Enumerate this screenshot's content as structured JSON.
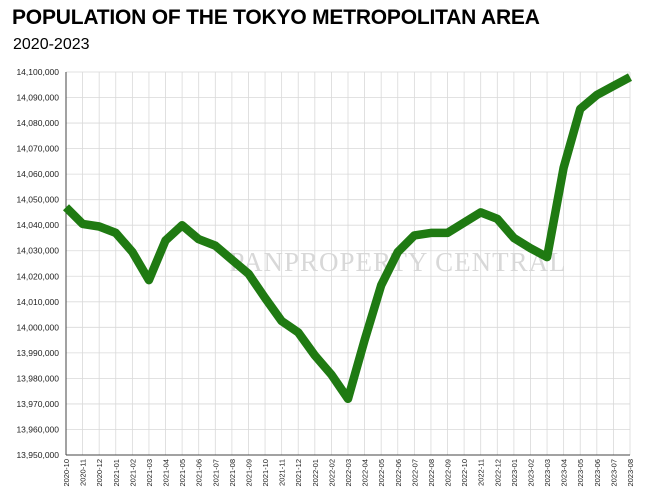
{
  "chart_data": {
    "type": "line",
    "title": "POPULATION OF THE TOKYO METROPOLITAN AREA",
    "subtitle": "2020-2023",
    "watermark": "PANPROPERTY CENTRAL",
    "xlabel": "",
    "ylabel": "",
    "ylim": [
      13950000,
      14100000
    ],
    "yticks": [
      13950000,
      13960000,
      13970000,
      13980000,
      13990000,
      14000000,
      14010000,
      14020000,
      14030000,
      14040000,
      14050000,
      14060000,
      14070000,
      14080000,
      14090000,
      14100000
    ],
    "ytick_labels": [
      "13,950,000",
      "13,960,000",
      "13,970,000",
      "13,980,000",
      "13,990,000",
      "14,000,000",
      "14,010,000",
      "14,020,000",
      "14,030,000",
      "14,040,000",
      "14,050,000",
      "14,060,000",
      "14,070,000",
      "14,080,000",
      "14,090,000",
      "14,100,000"
    ],
    "grid": true,
    "line_color": "#1f7a12",
    "categories": [
      "2020-10",
      "2020-11",
      "2020-12",
      "2021-01",
      "2021-02",
      "2021-03",
      "2021-04",
      "2021-05",
      "2021-06",
      "2021-07",
      "2021-08",
      "2021-09",
      "2021-10",
      "2021-11",
      "2021-12",
      "2022-01",
      "2022-02",
      "2022-03",
      "2022-04",
      "2022-05",
      "2022-06",
      "2022-07",
      "2022-08",
      "2022-09",
      "2022-10",
      "2022-11",
      "2022-12",
      "2023-01",
      "2023-02",
      "2023-03",
      "2023-04",
      "2023-05",
      "2023-06",
      "2023-07",
      "2023-08"
    ],
    "series": [
      {
        "values": [
          14047000,
          14040500,
          14039500,
          14037000,
          14029500,
          14018500,
          14034000,
          14040000,
          14034500,
          14032000,
          14026500,
          14021000,
          14011500,
          14002500,
          13998000,
          13989000,
          13981500,
          13972000,
          13995000,
          14016500,
          14029500,
          14036000,
          14037000,
          14037000,
          14041000,
          14045000,
          14042500,
          14035000,
          14031000,
          14027500,
          14062500,
          14085500,
          14091000,
          14094500,
          14098000
        ]
      }
    ]
  }
}
